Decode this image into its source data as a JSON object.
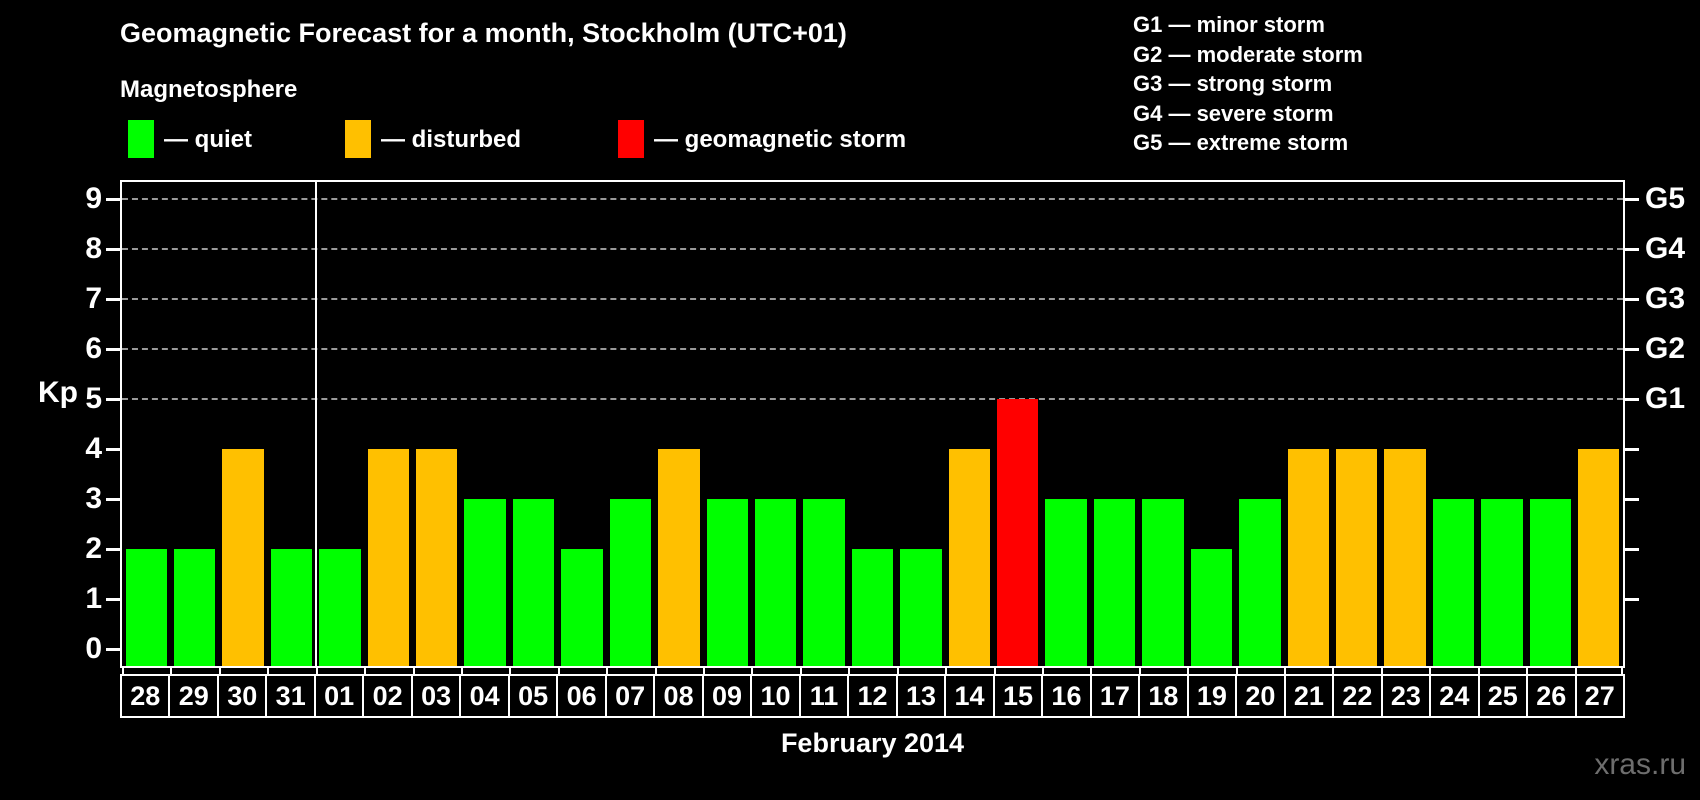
{
  "title": "Geomagnetic Forecast for a month, Stockholm (UTC+01)",
  "subtitle": "Magnetosphere",
  "ylabel": "Kp",
  "xlabel": "February 2014",
  "watermark": "xras.ru",
  "magnetosphere_legend": [
    {
      "name": "quiet",
      "label": "— quiet",
      "color": "#00ff00"
    },
    {
      "name": "disturbed",
      "label": "— disturbed",
      "color": "#ffc000"
    },
    {
      "name": "storm",
      "label": "— geomagnetic storm",
      "color": "#ff0000"
    }
  ],
  "storm_scale_legend": [
    "G1 — minor storm",
    "G2 — moderate storm",
    "G3 — strong storm",
    "G4 — severe storm",
    "G5 — extreme storm"
  ],
  "chart_data": {
    "type": "bar",
    "title": "Geomagnetic Forecast for a month, Stockholm (UTC+01)",
    "xlabel": "February 2014",
    "ylabel": "Kp",
    "ylim": [
      0,
      9.4
    ],
    "y_ticks": [
      0,
      1,
      2,
      3,
      4,
      5,
      6,
      7,
      8,
      9
    ],
    "gridlines_at": [
      5,
      6,
      7,
      8,
      9
    ],
    "grid_style": "dashed",
    "legend_position": "top",
    "right_axis": [
      {
        "label": "G1",
        "kp": 5
      },
      {
        "label": "G2",
        "kp": 6
      },
      {
        "label": "G3",
        "kp": 7
      },
      {
        "label": "G4",
        "kp": 8
      },
      {
        "label": "G5",
        "kp": 9
      }
    ],
    "month_divider_after_index": 3,
    "status_colors": {
      "quiet": "#00ff00",
      "disturbed": "#ffc000",
      "storm": "#ff0000"
    },
    "bars": [
      {
        "day": "28",
        "kp": 2,
        "status": "quiet"
      },
      {
        "day": "29",
        "kp": 2,
        "status": "quiet"
      },
      {
        "day": "30",
        "kp": 4,
        "status": "disturbed"
      },
      {
        "day": "31",
        "kp": 2,
        "status": "quiet"
      },
      {
        "day": "01",
        "kp": 2,
        "status": "quiet"
      },
      {
        "day": "02",
        "kp": 4,
        "status": "disturbed"
      },
      {
        "day": "03",
        "kp": 4,
        "status": "disturbed"
      },
      {
        "day": "04",
        "kp": 3,
        "status": "quiet"
      },
      {
        "day": "05",
        "kp": 3,
        "status": "quiet"
      },
      {
        "day": "06",
        "kp": 2,
        "status": "quiet"
      },
      {
        "day": "07",
        "kp": 3,
        "status": "quiet"
      },
      {
        "day": "08",
        "kp": 4,
        "status": "disturbed"
      },
      {
        "day": "09",
        "kp": 3,
        "status": "quiet"
      },
      {
        "day": "10",
        "kp": 3,
        "status": "quiet"
      },
      {
        "day": "11",
        "kp": 3,
        "status": "quiet"
      },
      {
        "day": "12",
        "kp": 2,
        "status": "quiet"
      },
      {
        "day": "13",
        "kp": 2,
        "status": "quiet"
      },
      {
        "day": "14",
        "kp": 4,
        "status": "disturbed"
      },
      {
        "day": "15",
        "kp": 5,
        "status": "storm"
      },
      {
        "day": "16",
        "kp": 3,
        "status": "quiet"
      },
      {
        "day": "17",
        "kp": 3,
        "status": "quiet"
      },
      {
        "day": "18",
        "kp": 3,
        "status": "quiet"
      },
      {
        "day": "19",
        "kp": 2,
        "status": "quiet"
      },
      {
        "day": "20",
        "kp": 3,
        "status": "quiet"
      },
      {
        "day": "21",
        "kp": 4,
        "status": "disturbed"
      },
      {
        "day": "22",
        "kp": 4,
        "status": "disturbed"
      },
      {
        "day": "23",
        "kp": 4,
        "status": "disturbed"
      },
      {
        "day": "24",
        "kp": 3,
        "status": "quiet"
      },
      {
        "day": "25",
        "kp": 3,
        "status": "quiet"
      },
      {
        "day": "26",
        "kp": 3,
        "status": "quiet"
      },
      {
        "day": "27",
        "kp": 4,
        "status": "disturbed"
      }
    ]
  }
}
